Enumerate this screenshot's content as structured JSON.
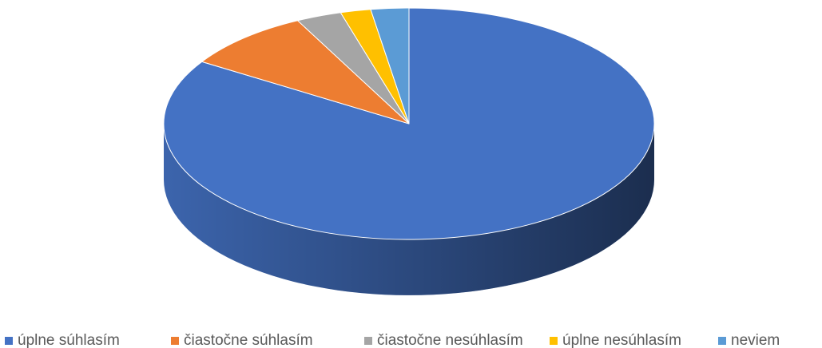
{
  "chart_data": {
    "type": "pie",
    "categories": [
      "úplne súhlasím",
      "čiastočne súhlasím",
      "čiastočne nesúhlasím",
      "úplne nesúhlasím",
      "neviem"
    ],
    "values": [
      84,
      8.5,
      3,
      2,
      2.5
    ],
    "colors": [
      "#4472c4",
      "#ed7d31",
      "#a5a5a5",
      "#ffc000",
      "#5b9bd5"
    ],
    "legend": "bottom"
  }
}
